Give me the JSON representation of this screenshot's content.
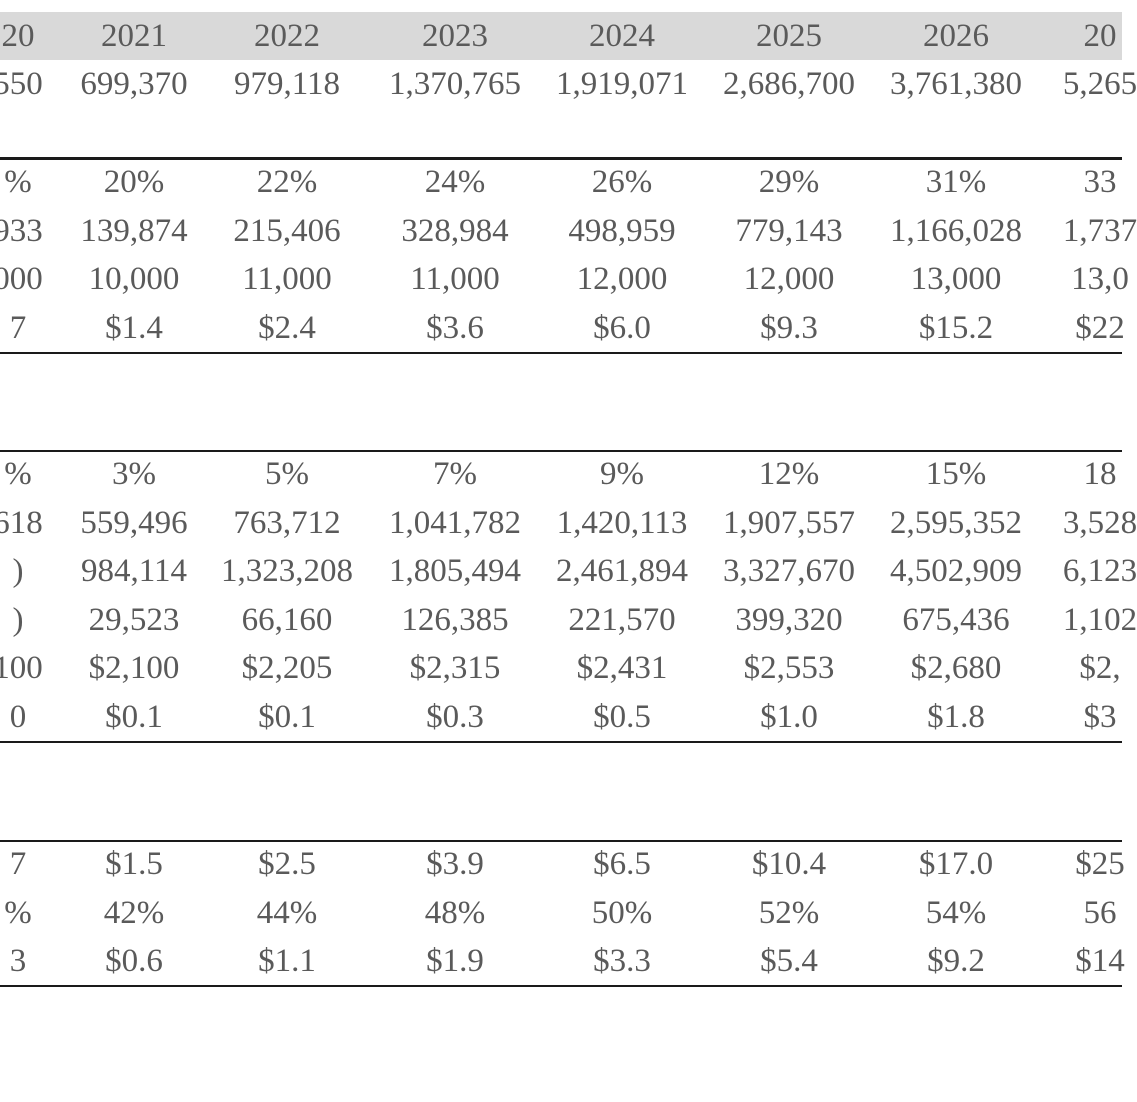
{
  "header": {
    "years": [
      "20",
      "2021",
      "2022",
      "2023",
      "2024",
      "2025",
      "2026",
      "20"
    ]
  },
  "tables": [
    {
      "rows": [
        [
          "550",
          "699,370",
          "979,118",
          "1,370,765",
          "1,919,071",
          "2,686,700",
          "3,761,380",
          "5,265"
        ]
      ]
    },
    {
      "rows": [
        [
          "%",
          "20%",
          "22%",
          "24%",
          "26%",
          "29%",
          "31%",
          "33"
        ],
        [
          "933",
          "139,874",
          "215,406",
          "328,984",
          "498,959",
          "779,143",
          "1,166,028",
          "1,737"
        ],
        [
          "000",
          "10,000",
          "11,000",
          "11,000",
          "12,000",
          "12,000",
          "13,000",
          "13,0"
        ],
        [
          "7",
          "$1.4",
          "$2.4",
          "$3.6",
          "$6.0",
          "$9.3",
          "$15.2",
          "$22"
        ]
      ]
    },
    {
      "rows": [
        [
          "%",
          "3%",
          "5%",
          "7%",
          "9%",
          "12%",
          "15%",
          "18"
        ],
        [
          "618",
          "559,496",
          "763,712",
          "1,041,782",
          "1,420,113",
          "1,907,557",
          "2,595,352",
          "3,528"
        ],
        [
          ")",
          "984,114",
          "1,323,208",
          "1,805,494",
          "2,461,894",
          "3,327,670",
          "4,502,909",
          "6,123"
        ],
        [
          ")",
          "29,523",
          "66,160",
          "126,385",
          "221,570",
          "399,320",
          "675,436",
          "1,102"
        ],
        [
          "100",
          "$2,100",
          "$2,205",
          "$2,315",
          "$2,431",
          "$2,553",
          "$2,680",
          "$2,"
        ],
        [
          "0",
          "$0.1",
          "$0.1",
          "$0.3",
          "$0.5",
          "$1.0",
          "$1.8",
          "$3"
        ]
      ]
    },
    {
      "rows": [
        [
          "7",
          "$1.5",
          "$2.5",
          "$3.9",
          "$6.5",
          "$10.4",
          "$17.0",
          "$25"
        ],
        [
          "%",
          "42%",
          "44%",
          "48%",
          "50%",
          "52%",
          "54%",
          "56"
        ],
        [
          "3",
          "$0.6",
          "$1.1",
          "$1.9",
          "$3.3",
          "$5.4",
          "$9.2",
          "$14"
        ]
      ]
    }
  ]
}
